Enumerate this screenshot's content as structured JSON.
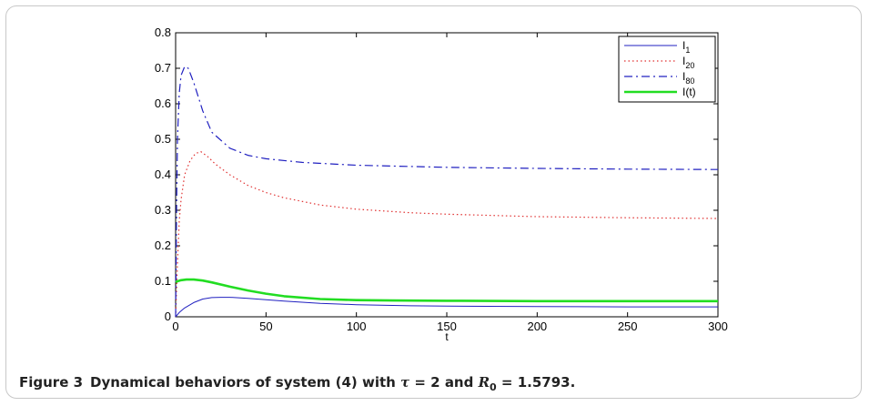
{
  "caption": {
    "label": "Figure 3",
    "pre": "Dynamical behaviors of system (4) with ",
    "tau_symbol": "τ",
    "tau_eq": " = 2 and ",
    "r_symbol": "R",
    "r_sub": "0",
    "r_eq": " = 1.5793."
  },
  "chart_data": {
    "type": "line",
    "title": "",
    "xlabel": "t",
    "ylabel": "",
    "xlim": [
      0,
      300
    ],
    "ylim": [
      0,
      0.8
    ],
    "xticks": [
      0,
      50,
      100,
      150,
      200,
      250,
      300
    ],
    "yticks": [
      0,
      0.1,
      0.2,
      0.3,
      0.4,
      0.5,
      0.6,
      0.7,
      0.8
    ],
    "ytick_labels": [
      "0",
      "0.1",
      "0.2",
      "0.3",
      "0.4",
      "0.5",
      "0.6",
      "0.7",
      "0.8"
    ],
    "grid": false,
    "legend_position": "top-right",
    "series": [
      {
        "name": "I",
        "name_sub": "1",
        "color": "#2020c0",
        "style": "solid",
        "x": [
          0,
          2,
          5,
          10,
          15,
          20,
          25,
          30,
          40,
          50,
          60,
          80,
          100,
          130,
          150,
          200,
          250,
          300
        ],
        "y": [
          0,
          0.012,
          0.025,
          0.04,
          0.05,
          0.054,
          0.055,
          0.055,
          0.052,
          0.048,
          0.044,
          0.038,
          0.034,
          0.031,
          0.03,
          0.029,
          0.028,
          0.028
        ]
      },
      {
        "name": "I",
        "name_sub": "20",
        "color": "#e03030",
        "style": "dotted",
        "x": [
          0,
          1,
          2,
          3,
          5,
          8,
          11,
          14,
          18,
          22,
          30,
          40,
          50,
          60,
          80,
          100,
          130,
          150,
          200,
          250,
          300
        ],
        "y": [
          0,
          0.15,
          0.27,
          0.33,
          0.4,
          0.44,
          0.46,
          0.465,
          0.45,
          0.43,
          0.4,
          0.37,
          0.35,
          0.335,
          0.315,
          0.303,
          0.293,
          0.289,
          0.282,
          0.279,
          0.277
        ]
      },
      {
        "name": "I",
        "name_sub": "80",
        "color": "#2020c0",
        "style": "dashdot",
        "x": [
          0,
          0.5,
          1,
          2,
          3,
          5,
          7,
          10,
          15,
          20,
          30,
          40,
          50,
          70,
          100,
          150,
          200,
          250,
          300
        ],
        "y": [
          0,
          0.3,
          0.5,
          0.63,
          0.68,
          0.705,
          0.7,
          0.66,
          0.58,
          0.52,
          0.475,
          0.455,
          0.445,
          0.435,
          0.427,
          0.421,
          0.418,
          0.416,
          0.415
        ]
      },
      {
        "name": "I(t)",
        "name_sub": "",
        "color": "#22dd22",
        "style": "thick",
        "x": [
          0,
          1,
          3,
          6,
          10,
          15,
          20,
          30,
          40,
          50,
          60,
          80,
          100,
          120,
          150,
          200,
          250,
          300
        ],
        "y": [
          0.098,
          0.1,
          0.103,
          0.105,
          0.105,
          0.102,
          0.097,
          0.085,
          0.074,
          0.065,
          0.058,
          0.05,
          0.047,
          0.046,
          0.045,
          0.044,
          0.044,
          0.044
        ]
      }
    ]
  }
}
